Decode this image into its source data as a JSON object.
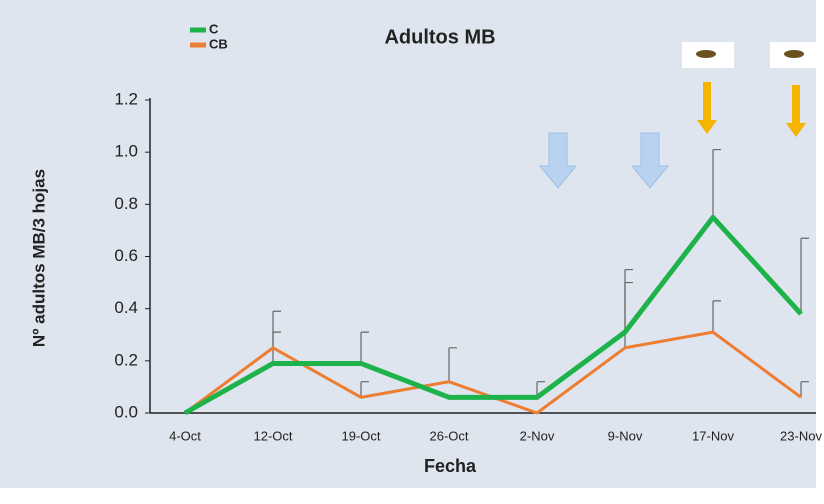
{
  "chart_data": {
    "type": "line",
    "title": "Adultos MB",
    "x_label": "Fecha",
    "y_label": "Nº adultos MB/3 hojas",
    "categories": [
      "4-Oct",
      "12-Oct",
      "19-Oct",
      "26-Oct",
      "2-Nov",
      "9-Nov",
      "17-Nov",
      "23-Nov"
    ],
    "series": [
      {
        "name": "C",
        "color": "#1db34a",
        "values": [
          0,
          0.19,
          0.19,
          0.06,
          0.06,
          0.31,
          0.75,
          0.38
        ],
        "errors": [
          null,
          0.2,
          0.12,
          null,
          0.06,
          0.24,
          0.26,
          0.29
        ]
      },
      {
        "name": "CB",
        "color": "#ed7d31",
        "values": [
          0,
          0.25,
          0.06,
          0.12,
          0,
          0.25,
          0.31,
          0.06
        ],
        "errors": [
          null,
          0.06,
          0.06,
          0.13,
          null,
          0.25,
          0.12,
          0.06
        ]
      }
    ],
    "ylim": [
      0,
      1.2
    ],
    "yticks": [
      {
        "value": 0,
        "label": "0.0"
      },
      0.2,
      0.4,
      0.6,
      0.8,
      {
        "value": 1,
        "label": "1.0"
      },
      1.2
    ],
    "grid": false
  }
}
